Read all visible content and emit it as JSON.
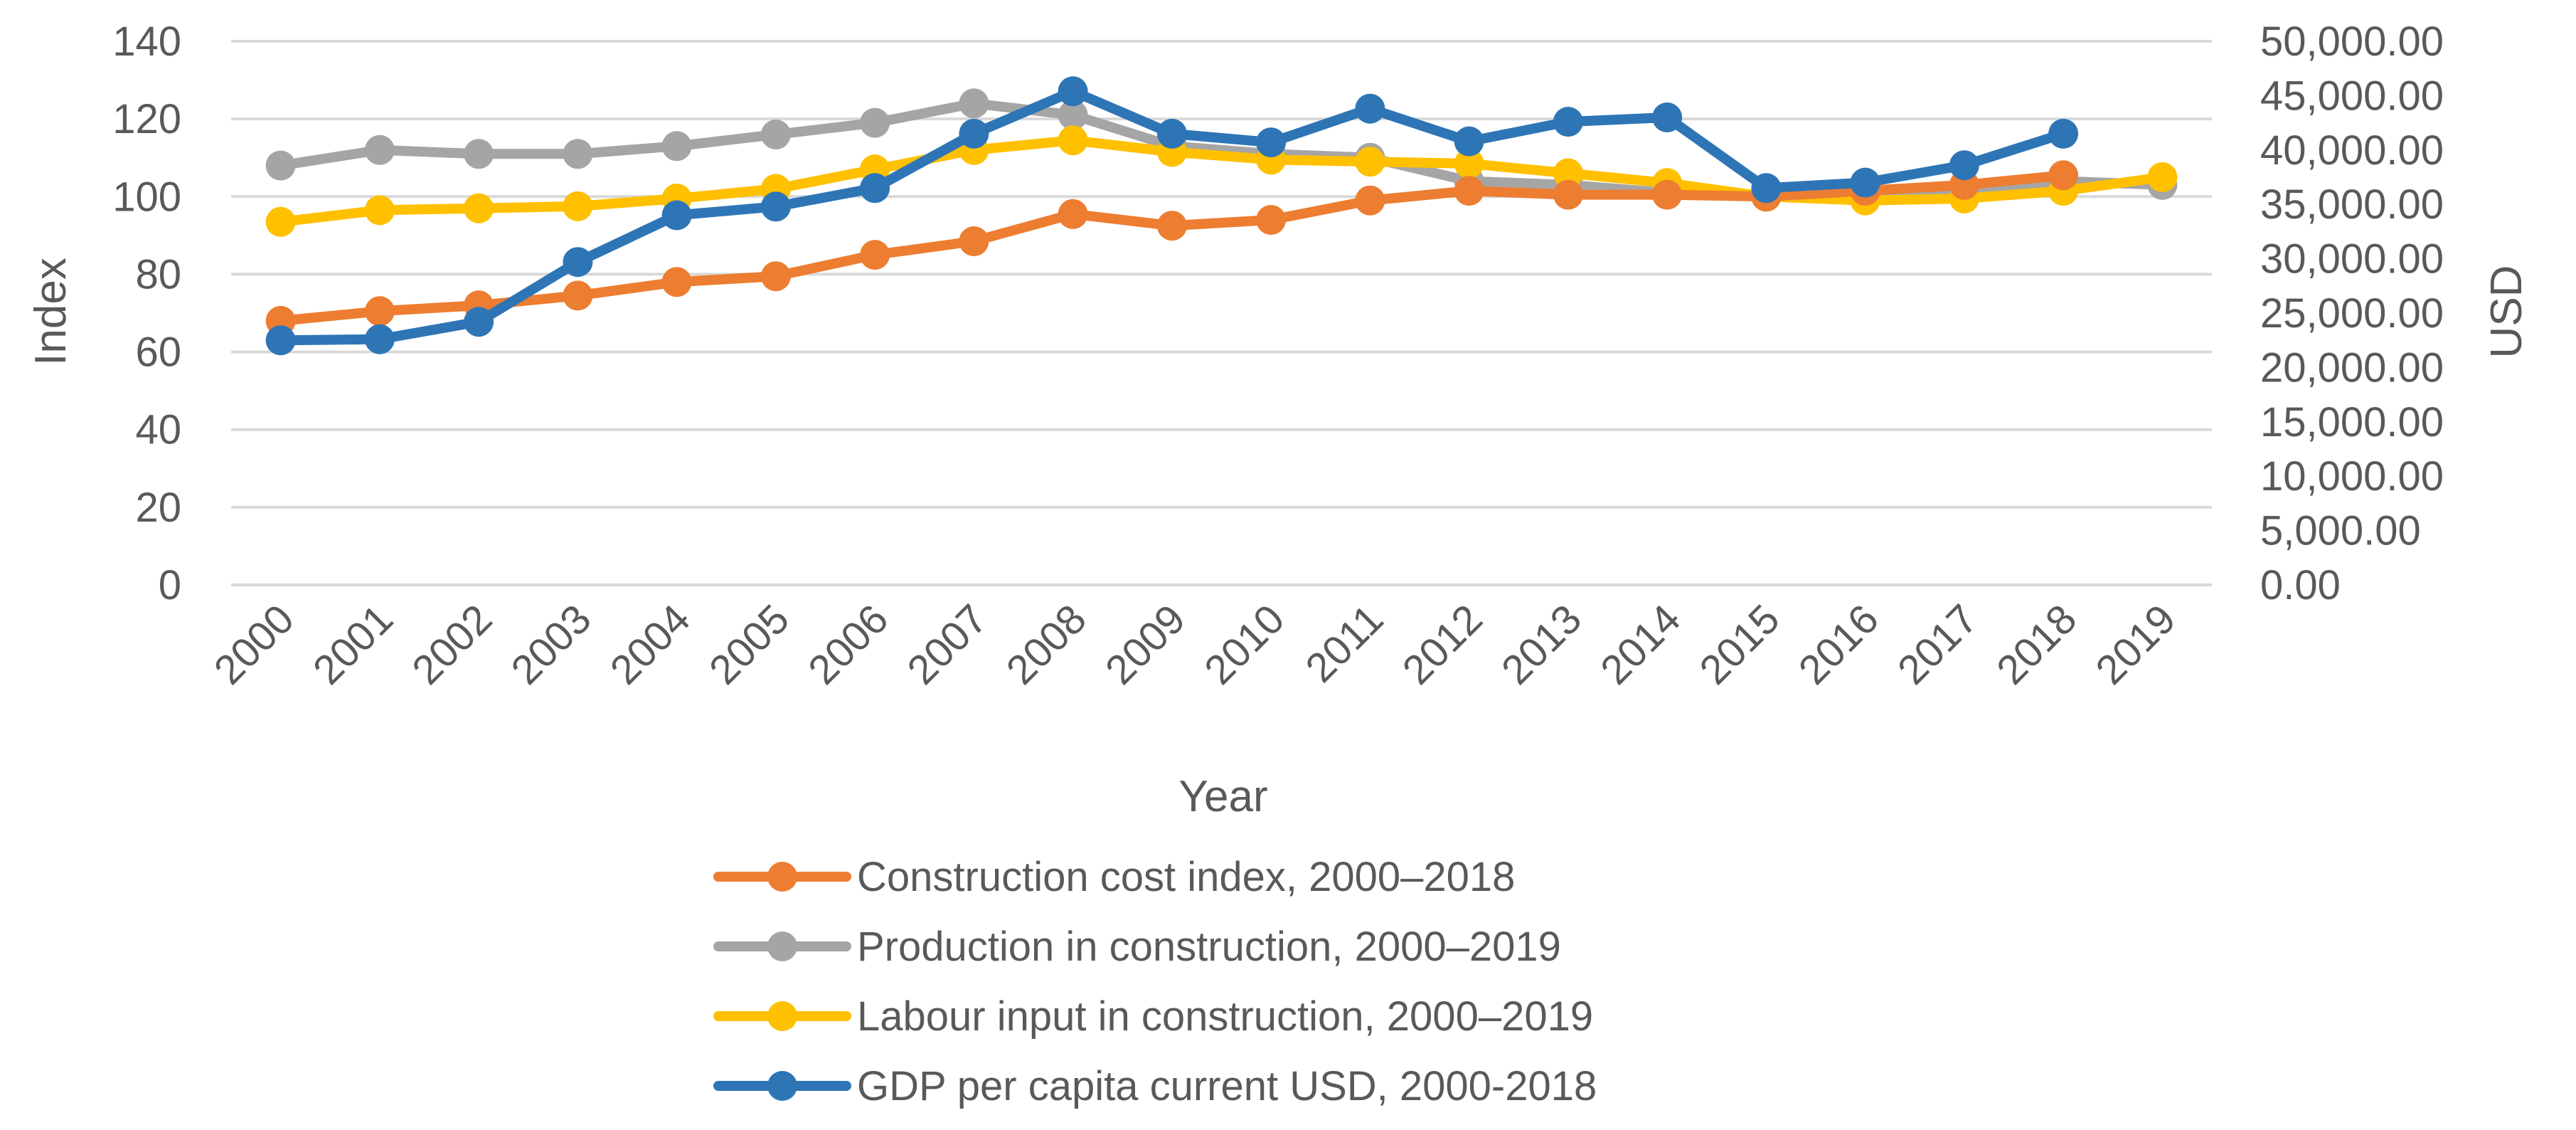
{
  "chart_data": {
    "type": "line",
    "title": "",
    "xlabel": "Year",
    "ylabel": "Index",
    "y2label": "USD",
    "x": [
      "2000",
      "2001",
      "2002",
      "2003",
      "2004",
      "2005",
      "2006",
      "2007",
      "2008",
      "2009",
      "2010",
      "2011",
      "2012",
      "2013",
      "2014",
      "2015",
      "2016",
      "2017",
      "2018",
      "2019"
    ],
    "ylim": [
      0,
      140
    ],
    "yticks": [
      0,
      20,
      40,
      60,
      80,
      100,
      120,
      140
    ],
    "y2lim": [
      0,
      50000
    ],
    "y2ticks": [
      "0.00",
      "5,000.00",
      "10,000.00",
      "15,000.00",
      "20,000.00",
      "25,000.00",
      "30,000.00",
      "35,000.00",
      "40,000.00",
      "45,000.00",
      "50,000.00"
    ],
    "grid": true,
    "legend_position": "bottom",
    "series": [
      {
        "name": "Production in construction, 2000–2019",
        "axis": "left",
        "color": "#A5A5A5",
        "values": [
          108,
          112,
          111,
          111,
          113,
          116,
          119,
          124,
          121,
          113,
          111,
          110,
          104,
          103,
          101,
          100,
          100,
          102,
          104,
          103
        ]
      },
      {
        "name": "Labour input in construction, 2000–2019",
        "axis": "left",
        "color": "#FFC000",
        "values": [
          93.5,
          96.5,
          97,
          97.5,
          99.5,
          102,
          107,
          112,
          114.5,
          111.5,
          109.5,
          109,
          108.5,
          106,
          103.5,
          100,
          99,
          99.5,
          101.5,
          105
        ]
      },
      {
        "name": "Construction cost index, 2000–2018",
        "axis": "left",
        "color": "#ED7D31",
        "values": [
          68,
          70.5,
          72,
          74.5,
          78,
          79.5,
          85,
          88.5,
          95.5,
          92.5,
          94,
          99,
          101.5,
          100.5,
          100.5,
          100,
          101.5,
          103,
          105.5,
          null
        ]
      },
      {
        "name": "GDP per capita current USD, 2000-2018",
        "axis": "right",
        "color": "#2E75B6",
        "values": [
          22500,
          22600,
          24200,
          29700,
          34000,
          34800,
          36500,
          41500,
          45400,
          41500,
          40700,
          43800,
          40800,
          42600,
          43000,
          36500,
          37000,
          38600,
          41500,
          null
        ]
      }
    ],
    "legend_order": [
      "Construction cost index, 2000–2018",
      "Production in construction, 2000–2019",
      "Labour input in construction, 2000–2019",
      "GDP per capita current USD, 2000-2018"
    ]
  }
}
